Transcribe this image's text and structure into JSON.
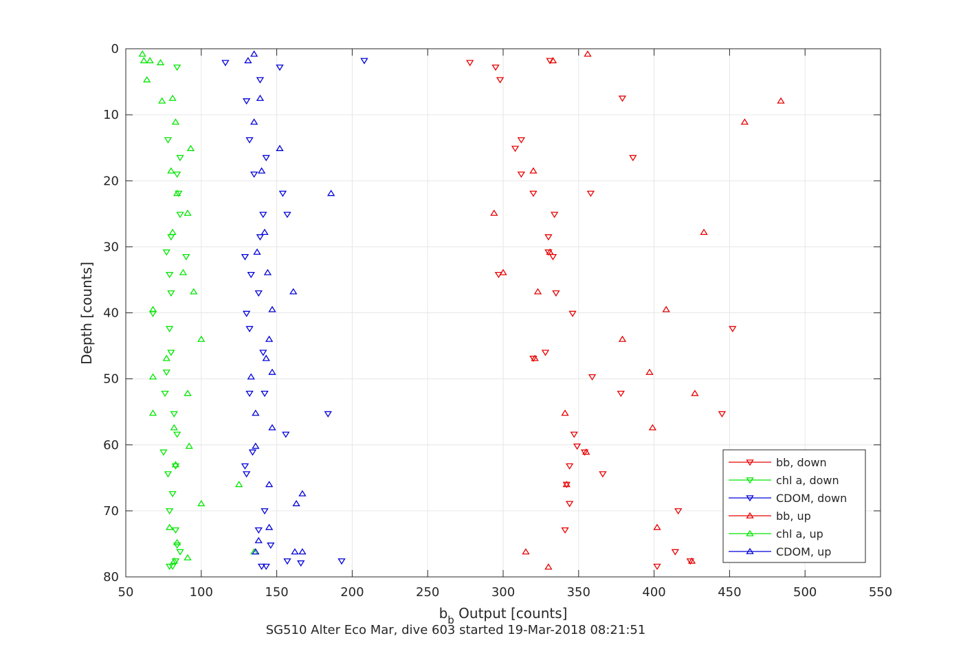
{
  "chart_data": {
    "type": "scatter",
    "xlabel_main": "b",
    "xlabel_sub": "b",
    "xlabel_rest": " Output [counts]",
    "ylabel": "Depth [counts]",
    "caption": "SG510 Alter Eco Mar, dive 603 started 19-Mar-2018 08:21:51",
    "xlim": [
      50,
      550
    ],
    "ylim": [
      0,
      80
    ],
    "y_reversed": true,
    "grid": true,
    "legend_position": "bottom-right",
    "xticks": [
      50,
      100,
      150,
      200,
      250,
      300,
      350,
      400,
      450,
      500,
      550
    ],
    "yticks": [
      0,
      10,
      20,
      30,
      40,
      50,
      60,
      70,
      80
    ],
    "colors": {
      "red": "#e60000",
      "green": "#00e600",
      "blue": "#0000d9",
      "grid": "#e6e6e6",
      "axis": "#262626"
    },
    "series": [
      {
        "name": "bb, down",
        "marker": "down",
        "color": "#e60000",
        "points": [
          [
            278,
            2.1
          ],
          [
            295,
            2.8
          ],
          [
            298,
            4.7
          ],
          [
            331,
            1.8
          ],
          [
            379,
            7.5
          ],
          [
            312,
            13.8
          ],
          [
            308,
            15.1
          ],
          [
            386,
            16.5
          ],
          [
            312,
            19
          ],
          [
            320,
            21.9
          ],
          [
            358,
            21.9
          ],
          [
            334,
            25.1
          ],
          [
            330,
            28.5
          ],
          [
            330,
            30.8
          ],
          [
            333,
            31.5
          ],
          [
            297,
            34.2
          ],
          [
            335,
            37
          ],
          [
            346,
            40.1
          ],
          [
            452,
            42.4
          ],
          [
            328,
            46
          ],
          [
            320,
            46.9
          ],
          [
            359,
            49.7
          ],
          [
            378,
            52.2
          ],
          [
            445,
            55.3
          ],
          [
            347,
            58.4
          ],
          [
            349,
            60.2
          ],
          [
            354,
            61.1
          ],
          [
            344,
            63.2
          ],
          [
            366,
            64.4
          ],
          [
            342,
            66
          ],
          [
            344,
            68.9
          ],
          [
            416,
            70
          ],
          [
            341,
            72.9
          ],
          [
            414,
            76.2
          ],
          [
            424,
            77.6
          ],
          [
            402,
            78.4
          ]
        ]
      },
      {
        "name": "chl a, down",
        "marker": "down",
        "color": "#00e600",
        "points": [
          [
            84,
            2.8
          ],
          [
            78,
            13.8
          ],
          [
            86,
            16.5
          ],
          [
            84,
            19
          ],
          [
            85,
            21.9
          ],
          [
            86,
            25.1
          ],
          [
            80,
            28.5
          ],
          [
            77,
            30.8
          ],
          [
            90,
            31.5
          ],
          [
            79,
            34.2
          ],
          [
            80,
            37
          ],
          [
            68,
            40.1
          ],
          [
            79,
            42.4
          ],
          [
            80,
            46
          ],
          [
            77,
            49
          ],
          [
            76,
            52.2
          ],
          [
            82,
            55.3
          ],
          [
            84,
            58.4
          ],
          [
            75,
            61.1
          ],
          [
            83,
            63.2
          ],
          [
            78,
            64.4
          ],
          [
            81,
            67.4
          ],
          [
            79,
            70
          ],
          [
            83,
            72.9
          ],
          [
            84,
            75.2
          ],
          [
            86,
            76.2
          ],
          [
            79,
            78.4
          ],
          [
            81,
            78.4
          ],
          [
            83,
            77.6
          ]
        ]
      },
      {
        "name": "CDOM, down",
        "marker": "down",
        "color": "#0000d9",
        "points": [
          [
            116,
            2.1
          ],
          [
            152,
            2.8
          ],
          [
            208,
            1.8
          ],
          [
            139,
            4.7
          ],
          [
            130,
            7.9
          ],
          [
            132,
            13.8
          ],
          [
            143,
            16.5
          ],
          [
            135,
            19
          ],
          [
            154,
            21.9
          ],
          [
            141,
            25.1
          ],
          [
            157,
            25.1
          ],
          [
            139,
            28.5
          ],
          [
            129,
            31.5
          ],
          [
            133,
            34.2
          ],
          [
            138,
            37
          ],
          [
            130,
            40.1
          ],
          [
            132,
            42.4
          ],
          [
            141,
            46
          ],
          [
            132,
            52.2
          ],
          [
            142,
            52.2
          ],
          [
            184,
            55.3
          ],
          [
            156,
            58.4
          ],
          [
            134,
            61.1
          ],
          [
            129,
            63.2
          ],
          [
            130,
            64.4
          ],
          [
            142,
            70
          ],
          [
            138,
            72.9
          ],
          [
            146,
            75.2
          ],
          [
            193,
            77.6
          ],
          [
            157,
            77.6
          ],
          [
            166,
            77.9
          ],
          [
            143,
            78.4
          ],
          [
            140,
            78.4
          ]
        ]
      },
      {
        "name": "bb, up",
        "marker": "up",
        "color": "#e60000",
        "points": [
          [
            356,
            0.8
          ],
          [
            333,
            1.8
          ],
          [
            484,
            7.9
          ],
          [
            460,
            11.1
          ],
          [
            320,
            18.5
          ],
          [
            294,
            24.9
          ],
          [
            433,
            27.8
          ],
          [
            331,
            30.8
          ],
          [
            300,
            33.9
          ],
          [
            323,
            36.8
          ],
          [
            408,
            39.5
          ],
          [
            379,
            44
          ],
          [
            321,
            46.9
          ],
          [
            397,
            49
          ],
          [
            427,
            52.2
          ],
          [
            341,
            55.2
          ],
          [
            399,
            57.4
          ],
          [
            355,
            61.1
          ],
          [
            342,
            66
          ],
          [
            402,
            72.5
          ],
          [
            315,
            76.2
          ],
          [
            425,
            77.6
          ],
          [
            330,
            78.5
          ]
        ]
      },
      {
        "name": "chl a, up",
        "marker": "up",
        "color": "#00e600",
        "points": [
          [
            61,
            0.8
          ],
          [
            62,
            1.8
          ],
          [
            66,
            1.8
          ],
          [
            73,
            2.1
          ],
          [
            64,
            4.7
          ],
          [
            74,
            7.9
          ],
          [
            81,
            7.5
          ],
          [
            83,
            11.1
          ],
          [
            93,
            15.1
          ],
          [
            80,
            18.5
          ],
          [
            84,
            21.9
          ],
          [
            91,
            24.9
          ],
          [
            81,
            27.8
          ],
          [
            88,
            33.9
          ],
          [
            95,
            36.8
          ],
          [
            68,
            39.5
          ],
          [
            100,
            44
          ],
          [
            77,
            46.9
          ],
          [
            68,
            49.7
          ],
          [
            91,
            52.2
          ],
          [
            68,
            55.2
          ],
          [
            82,
            57.4
          ],
          [
            92,
            60.2
          ],
          [
            83,
            63
          ],
          [
            125,
            66
          ],
          [
            100,
            68.9
          ],
          [
            79,
            72.5
          ],
          [
            84,
            74.8
          ],
          [
            91,
            77.1
          ],
          [
            82,
            77.6
          ],
          [
            135,
            76.2
          ]
        ]
      },
      {
        "name": "CDOM, up",
        "marker": "up",
        "color": "#0000d9",
        "points": [
          [
            135,
            0.8
          ],
          [
            131,
            1.8
          ],
          [
            139,
            7.5
          ],
          [
            135,
            11.1
          ],
          [
            152,
            15.1
          ],
          [
            140,
            18.5
          ],
          [
            186,
            21.9
          ],
          [
            142,
            27.8
          ],
          [
            137,
            30.8
          ],
          [
            144,
            33.9
          ],
          [
            161,
            36.8
          ],
          [
            147,
            39.5
          ],
          [
            145,
            44
          ],
          [
            143,
            46.9
          ],
          [
            147,
            49
          ],
          [
            133,
            49.7
          ],
          [
            136,
            55.2
          ],
          [
            147,
            57.4
          ],
          [
            136,
            60.2
          ],
          [
            145,
            66
          ],
          [
            167,
            67.4
          ],
          [
            163,
            68.9
          ],
          [
            145,
            72.5
          ],
          [
            138,
            74.5
          ],
          [
            162,
            76.2
          ],
          [
            167,
            76.2
          ],
          [
            136,
            76.2
          ]
        ]
      }
    ]
  }
}
